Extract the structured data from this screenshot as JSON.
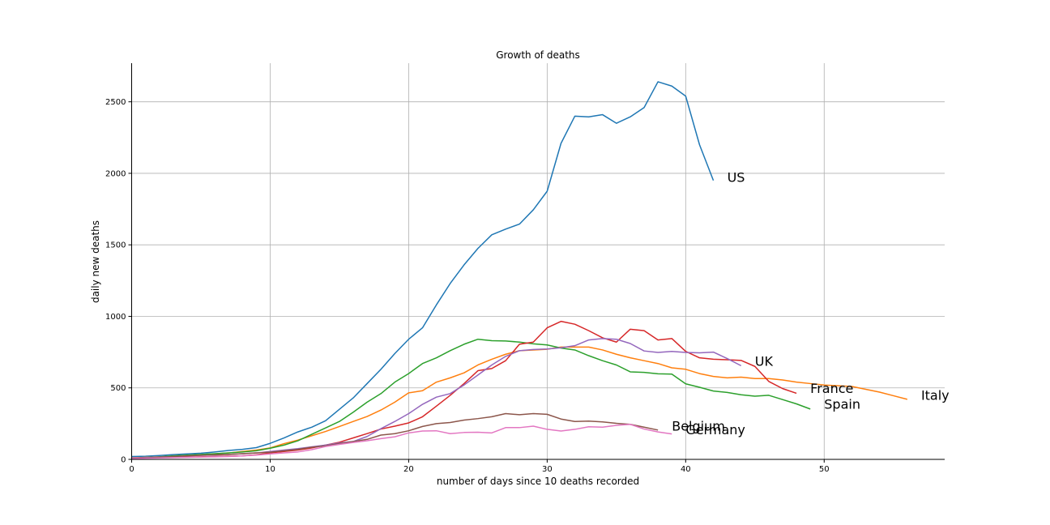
{
  "chart_data": {
    "type": "line",
    "title": "Growth of deaths",
    "xlabel": "number of days since 10 deaths recorded",
    "ylabel": "daily new deaths",
    "xlim": [
      0,
      58.7
    ],
    "ylim": [
      0,
      2770
    ],
    "xticks": [
      0,
      10,
      20,
      30,
      40,
      50
    ],
    "yticks": [
      0,
      500,
      1000,
      1500,
      2000,
      2500
    ],
    "grid": true,
    "legend": "none",
    "series": [
      {
        "name": "US",
        "color": "#1f77b4",
        "label_pos": [
          43,
          1965
        ],
        "values": [
          20,
          22,
          27,
          33,
          38,
          43,
          52,
          62,
          70,
          82,
          112,
          150,
          192,
          225,
          270,
          350,
          430,
          530,
          630,
          740,
          840,
          920,
          1080,
          1230,
          1360,
          1475,
          1570,
          1610,
          1645,
          1745,
          1875,
          2210,
          2400,
          2395,
          2410,
          2350,
          2395,
          2460,
          2640,
          2610,
          2540,
          2200,
          1950
        ]
      },
      {
        "name": "Italy",
        "color": "#ff7f0e",
        "label_pos": [
          57,
          443
        ],
        "values": [
          10,
          14,
          18,
          22,
          27,
          32,
          38,
          45,
          55,
          65,
          80,
          110,
          135,
          165,
          195,
          230,
          265,
          300,
          345,
          400,
          465,
          480,
          540,
          570,
          605,
          660,
          700,
          735,
          760,
          765,
          770,
          785,
          785,
          785,
          765,
          735,
          710,
          690,
          670,
          640,
          630,
          600,
          580,
          570,
          575,
          565,
          565,
          555,
          540,
          530,
          520,
          515,
          510,
          490,
          470,
          445,
          420
        ]
      },
      {
        "name": "Spain",
        "color": "#2ca02c",
        "label_pos": [
          50,
          380
        ],
        "values": [
          8,
          12,
          18,
          25,
          30,
          35,
          40,
          45,
          52,
          60,
          78,
          100,
          130,
          175,
          220,
          265,
          330,
          400,
          460,
          540,
          600,
          670,
          710,
          760,
          805,
          840,
          830,
          828,
          820,
          808,
          800,
          778,
          765,
          725,
          690,
          660,
          612,
          608,
          598,
          596,
          528,
          504,
          478,
          468,
          452,
          442,
          448,
          418,
          388,
          352
        ]
      },
      {
        "name": "UK",
        "color": "#d62728",
        "label_pos": [
          45,
          680
        ],
        "values": [
          10,
          12,
          14,
          15,
          16,
          18,
          20,
          22,
          25,
          32,
          45,
          55,
          65,
          80,
          100,
          120,
          150,
          180,
          212,
          232,
          255,
          298,
          372,
          448,
          530,
          620,
          635,
          690,
          805,
          820,
          920,
          965,
          945,
          900,
          850,
          820,
          910,
          900,
          835,
          845,
          755,
          710,
          700,
          697,
          692,
          650,
          545,
          495,
          462
        ]
      },
      {
        "name": "France",
        "color": "#9467bd",
        "label_pos": [
          49,
          490
        ],
        "values": [
          8,
          12,
          16,
          20,
          24,
          28,
          30,
          34,
          40,
          45,
          55,
          65,
          75,
          88,
          100,
          115,
          125,
          160,
          215,
          265,
          320,
          385,
          435,
          460,
          520,
          590,
          660,
          720,
          760,
          768,
          772,
          780,
          795,
          835,
          845,
          840,
          810,
          758,
          748,
          755,
          748,
          745,
          750,
          705,
          655
        ]
      },
      {
        "name": "Belgium",
        "color": "#8c564b",
        "label_pos": [
          39,
          228
        ],
        "values": [
          5,
          10,
          15,
          20,
          25,
          28,
          32,
          35,
          40,
          45,
          50,
          60,
          70,
          85,
          95,
          110,
          125,
          140,
          170,
          180,
          200,
          230,
          250,
          258,
          275,
          285,
          298,
          320,
          312,
          320,
          315,
          282,
          265,
          268,
          262,
          252,
          245,
          225,
          205
        ]
      },
      {
        "name": "Germany",
        "color": "#e377c2",
        "label_pos": [
          40,
          200
        ],
        "values": [
          5,
          8,
          10,
          12,
          14,
          16,
          18,
          20,
          25,
          30,
          38,
          45,
          52,
          68,
          90,
          105,
          118,
          130,
          145,
          158,
          185,
          198,
          200,
          180,
          188,
          190,
          185,
          222,
          222,
          232,
          210,
          198,
          210,
          228,
          225,
          238,
          245,
          212,
          192,
          178
        ]
      }
    ]
  }
}
